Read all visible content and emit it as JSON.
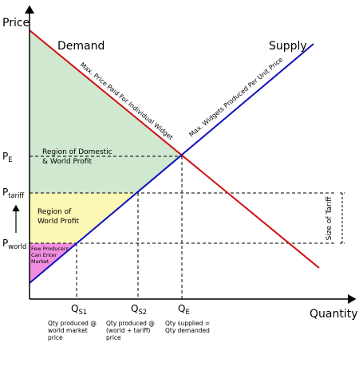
{
  "axes": {
    "y_label": "Price",
    "x_label": "Quantity"
  },
  "curves": {
    "demand": {
      "label": "Demand",
      "caption": "Max. Price Paid For Individual Widget"
    },
    "supply": {
      "label": "Supply",
      "caption": "Max. Widgets Produced Per Unit Price"
    }
  },
  "prices": [
    {
      "symbol": "P",
      "sub": "E"
    },
    {
      "symbol": "P",
      "sub": "tariff"
    },
    {
      "symbol": "P",
      "sub": "world"
    }
  ],
  "quantities": [
    {
      "symbol": "Q",
      "sub": "S1",
      "caption": [
        "Qty produced @",
        "world market",
        "price"
      ]
    },
    {
      "symbol": "Q",
      "sub": "S2",
      "caption": [
        "Qty produced @",
        "(world + tariff)",
        "price"
      ]
    },
    {
      "symbol": "Q",
      "sub": "E",
      "caption": [
        "Qty supplied =",
        "Qty demanded"
      ]
    }
  ],
  "regions": [
    {
      "lines": [
        "Region of Domestic",
        "& World Profit"
      ]
    },
    {
      "lines": [
        "Region of",
        "World Profit"
      ]
    },
    {
      "lines": [
        "Few Producers",
        "Can Enter",
        "Market"
      ]
    }
  ],
  "tariff_label": "Size of Tariff"
}
